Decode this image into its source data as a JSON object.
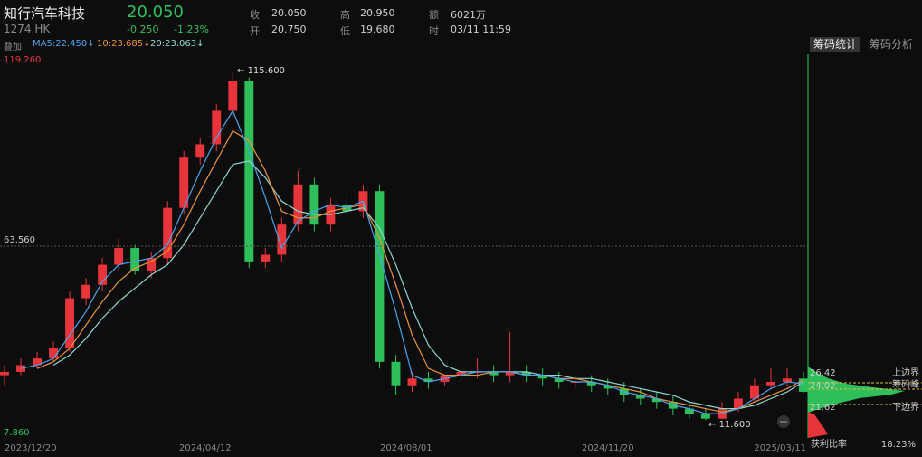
{
  "header": {
    "name": "知行汽车科技",
    "code": "1274.HK",
    "price": "20.050",
    "change": "-0.250",
    "change_pct": "-1.23%",
    "fields": [
      [
        "收",
        "20.050"
      ],
      [
        "开",
        "20.750"
      ],
      [
        "高",
        "20.950"
      ],
      [
        "低",
        "19.680"
      ],
      [
        "额",
        "6021万"
      ],
      [
        "时",
        "03/11 11:59"
      ]
    ],
    "overlay": "叠加"
  },
  "tabs": [
    "筹码统计",
    "筹码分析"
  ],
  "chip": {
    "upper_value": "26.42",
    "upper_label": "上边界",
    "peak_value": "24.02",
    "peak_label": "筹码峰",
    "lower_value": "21.62",
    "lower_label": "下边界",
    "profit_label": "获利比率",
    "profit_value": "18.23%"
  },
  "chart_data": {
    "type": "candlestick",
    "ylim": [
      7.86,
      119.26
    ],
    "yticks": [
      {
        "value": 119.26,
        "label": "119.260"
      },
      {
        "value": 63.56,
        "label": "63.560"
      },
      {
        "value": 7.86,
        "label": "7.860"
      }
    ],
    "x_labels": [
      "2023/12/20",
      "2024/04/12",
      "2024/08/01",
      "2024/11/20",
      "2025/03/11"
    ],
    "up_color": "#e8353b",
    "down_color": "#2fbf5a",
    "open": [
      25,
      26,
      28,
      30,
      33,
      48,
      52,
      58,
      63,
      56,
      60,
      75,
      90,
      94,
      104,
      113,
      59,
      61,
      70,
      82,
      70,
      76,
      74,
      80,
      29,
      22,
      24,
      23,
      25,
      26,
      26,
      25,
      26,
      25,
      24,
      23,
      23,
      22,
      21,
      19,
      18,
      17,
      15,
      13.5,
      12,
      15,
      18,
      22,
      23,
      24
    ],
    "close": [
      26,
      28,
      30,
      33,
      48,
      52,
      58,
      63,
      56,
      60,
      75,
      90,
      94,
      104,
      113,
      59,
      61,
      70,
      82,
      70,
      76,
      74,
      80,
      29,
      22,
      24,
      23,
      25,
      26,
      26,
      25,
      26,
      25,
      24,
      23,
      23,
      22,
      21,
      19,
      18,
      17,
      15,
      13.5,
      12,
      15,
      18,
      22,
      23,
      24,
      20.05
    ],
    "high": [
      28,
      30,
      32,
      35,
      50,
      54,
      60,
      66,
      64,
      62,
      77,
      92,
      96,
      106,
      115.6,
      114,
      63,
      72,
      86,
      84,
      78,
      79,
      82,
      82,
      31,
      26,
      26,
      25,
      27,
      30,
      28,
      38,
      28,
      27,
      26,
      25,
      25,
      24,
      23,
      21,
      20,
      19,
      17,
      15,
      17,
      20,
      24,
      27,
      27,
      26
    ],
    "low": [
      22,
      25,
      27,
      29,
      32,
      46,
      50,
      56,
      55,
      54,
      58,
      73,
      88,
      92,
      102,
      57,
      57,
      59,
      68,
      68,
      68,
      72,
      72,
      27,
      19,
      20,
      21,
      22,
      23,
      24,
      23,
      23,
      23,
      22,
      21,
      21,
      20,
      19,
      17,
      16,
      15,
      13,
      12,
      11.6,
      11.8,
      14,
      17,
      21,
      22,
      19.68
    ],
    "annotations": [
      {
        "text": "115.600"
      },
      {
        "text": "11.600"
      }
    ],
    "series": [
      {
        "name": "MA5:22.450↓",
        "color": "#4aa3ea",
        "values": [
          null,
          27,
          28,
          30,
          37,
          44,
          53,
          58,
          59,
          60,
          64,
          75,
          86,
          96,
          104,
          92,
          78,
          63,
          71,
          74,
          76,
          75,
          77,
          61,
          44,
          25,
          23,
          24,
          25,
          26,
          26,
          26,
          25,
          25,
          24,
          23,
          23,
          22,
          20,
          19,
          18,
          16,
          15,
          13.5,
          13.5,
          15,
          18,
          21,
          23,
          22.45
        ]
      },
      {
        "name": "10:23.685↓",
        "color": "#e8923a",
        "values": [
          null,
          null,
          27,
          29,
          33,
          40,
          47,
          53,
          57,
          59,
          62,
          70,
          80,
          89,
          98,
          95,
          86,
          74,
          72,
          72,
          74,
          75,
          76,
          66,
          52,
          37,
          27,
          25,
          25,
          25,
          26,
          26,
          25,
          25,
          24,
          24,
          23,
          22,
          21,
          20,
          18,
          17,
          16,
          15,
          14,
          15,
          17,
          19,
          21,
          23.685
        ]
      },
      {
        "name": "20:23.063↓",
        "color": "#8fd6cf",
        "values": [
          null,
          null,
          null,
          28,
          31,
          36,
          42,
          47,
          51,
          55,
          58,
          64,
          72,
          80,
          88,
          89,
          84,
          77,
          74,
          73,
          73,
          74,
          75,
          69,
          58,
          45,
          34,
          28,
          26,
          26,
          26,
          26,
          26,
          25,
          25,
          24,
          24,
          23,
          22,
          21,
          20,
          19,
          17,
          16,
          15,
          15,
          16,
          18,
          20,
          23.063
        ]
      }
    ]
  }
}
